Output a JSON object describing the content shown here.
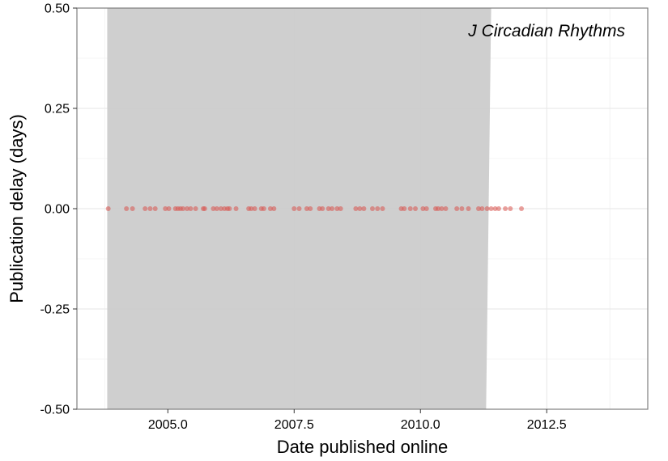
{
  "chart_data": {
    "type": "scatter",
    "title": "",
    "annotation": "J Circadian Rhythms",
    "xlabel": "Date published online",
    "ylabel": "Publication delay (days)",
    "xlim": [
      2003.2,
      2014.5
    ],
    "ylim": [
      -0.5,
      0.5
    ],
    "x_ticks": [
      2005.0,
      2007.5,
      2010.0,
      2012.5
    ],
    "x_tick_labels": [
      "2005.0",
      "2007.5",
      "2010.0",
      "2012.5"
    ],
    "y_ticks": [
      -0.5,
      -0.25,
      0.0,
      0.25,
      0.5
    ],
    "y_tick_labels": [
      "-0.50",
      "-0.25",
      "0.00",
      "0.25",
      "0.50"
    ],
    "grid": true,
    "legend": "none",
    "point_color": "#d9534f",
    "band_color": "#cccccc",
    "band": {
      "x_start": 2003.8,
      "x_end_top": 2011.4,
      "x_end_bottom": 2011.3
    },
    "points": [
      {
        "x": 2003.82,
        "y": 0
      },
      {
        "x": 2004.18,
        "y": 0
      },
      {
        "x": 2004.3,
        "y": 0
      },
      {
        "x": 2004.55,
        "y": 0
      },
      {
        "x": 2004.65,
        "y": 0
      },
      {
        "x": 2004.75,
        "y": 0
      },
      {
        "x": 2004.95,
        "y": 0
      },
      {
        "x": 2005.02,
        "y": 0
      },
      {
        "x": 2005.15,
        "y": 0
      },
      {
        "x": 2005.2,
        "y": 0
      },
      {
        "x": 2005.25,
        "y": 0
      },
      {
        "x": 2005.3,
        "y": 0
      },
      {
        "x": 2005.38,
        "y": 0
      },
      {
        "x": 2005.45,
        "y": 0
      },
      {
        "x": 2005.55,
        "y": 0
      },
      {
        "x": 2005.7,
        "y": 0
      },
      {
        "x": 2005.73,
        "y": 0
      },
      {
        "x": 2005.9,
        "y": 0
      },
      {
        "x": 2005.97,
        "y": 0
      },
      {
        "x": 2006.05,
        "y": 0
      },
      {
        "x": 2006.12,
        "y": 0
      },
      {
        "x": 2006.18,
        "y": 0
      },
      {
        "x": 2006.22,
        "y": 0
      },
      {
        "x": 2006.35,
        "y": 0
      },
      {
        "x": 2006.6,
        "y": 0
      },
      {
        "x": 2006.65,
        "y": 0
      },
      {
        "x": 2006.72,
        "y": 0
      },
      {
        "x": 2006.85,
        "y": 0
      },
      {
        "x": 2006.9,
        "y": 0
      },
      {
        "x": 2007.03,
        "y": 0
      },
      {
        "x": 2007.1,
        "y": 0
      },
      {
        "x": 2007.5,
        "y": 0
      },
      {
        "x": 2007.6,
        "y": 0
      },
      {
        "x": 2007.75,
        "y": 0
      },
      {
        "x": 2007.82,
        "y": 0
      },
      {
        "x": 2008.0,
        "y": 0
      },
      {
        "x": 2008.06,
        "y": 0
      },
      {
        "x": 2008.18,
        "y": 0
      },
      {
        "x": 2008.25,
        "y": 0
      },
      {
        "x": 2008.35,
        "y": 0
      },
      {
        "x": 2008.42,
        "y": 0
      },
      {
        "x": 2008.72,
        "y": 0
      },
      {
        "x": 2008.8,
        "y": 0
      },
      {
        "x": 2008.88,
        "y": 0
      },
      {
        "x": 2009.05,
        "y": 0
      },
      {
        "x": 2009.15,
        "y": 0
      },
      {
        "x": 2009.25,
        "y": 0
      },
      {
        "x": 2009.62,
        "y": 0
      },
      {
        "x": 2009.68,
        "y": 0
      },
      {
        "x": 2009.8,
        "y": 0
      },
      {
        "x": 2009.9,
        "y": 0
      },
      {
        "x": 2010.05,
        "y": 0
      },
      {
        "x": 2010.12,
        "y": 0
      },
      {
        "x": 2010.3,
        "y": 0
      },
      {
        "x": 2010.35,
        "y": 0
      },
      {
        "x": 2010.42,
        "y": 0
      },
      {
        "x": 2010.5,
        "y": 0
      },
      {
        "x": 2010.72,
        "y": 0
      },
      {
        "x": 2010.82,
        "y": 0
      },
      {
        "x": 2010.95,
        "y": 0
      },
      {
        "x": 2011.15,
        "y": 0
      },
      {
        "x": 2011.22,
        "y": 0
      },
      {
        "x": 2011.32,
        "y": 0
      },
      {
        "x": 2011.4,
        "y": 0
      },
      {
        "x": 2011.48,
        "y": 0
      },
      {
        "x": 2011.55,
        "y": 0
      },
      {
        "x": 2011.68,
        "y": 0
      },
      {
        "x": 2011.78,
        "y": 0
      },
      {
        "x": 2012.0,
        "y": 0
      }
    ]
  }
}
